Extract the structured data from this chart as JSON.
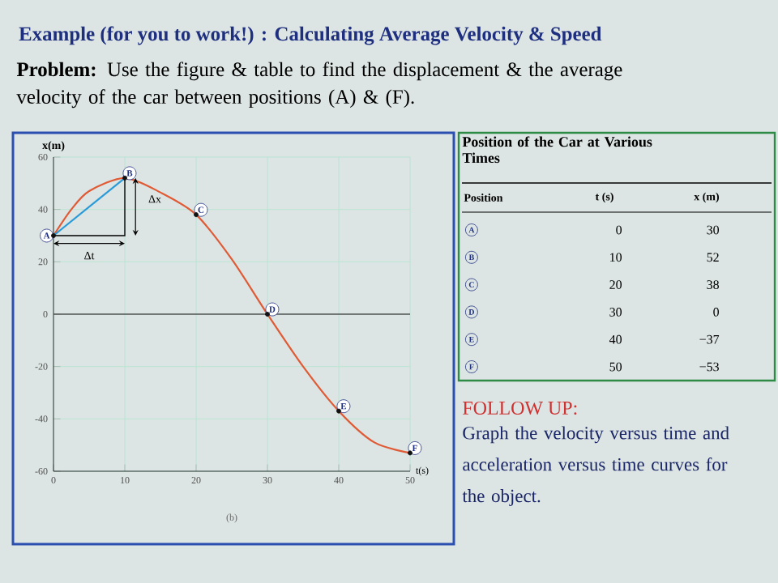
{
  "chart_data": [
    {
      "type": "line",
      "title": "Example (for you to work!) : Calculating Average Velocity & Speed",
      "subtitle": "**Problem:** Use the figure & table to find the displacement & the average velocity of the car between positions (A) & (F).",
      "xlabel": "t(s)",
      "ylabel": "x(m)",
      "xlim": [
        0,
        50
      ],
      "ylim": [
        -60,
        60
      ],
      "xticks": [
        0,
        10,
        20,
        30,
        40,
        50
      ],
      "yticks": [
        -60,
        -40,
        -20,
        0,
        20,
        40,
        60
      ],
      "grid": true,
      "ref_lines": [
        {
          "axis": "y",
          "value": 0,
          "color": "#555555"
        }
      ],
      "series": [
        {
          "type": "line",
          "color": "#e05a35",
          "x": [
            0,
            2.5,
            5,
            10,
            15,
            20,
            25,
            30,
            35,
            40,
            45,
            50
          ],
          "values": [
            30,
            40,
            47,
            52,
            46.5,
            38,
            21,
            0,
            -20,
            -37,
            -49,
            -53
          ]
        },
        {
          "type": "line",
          "color": "#2a9ad8",
          "x": [
            0,
            10
          ],
          "values": [
            30,
            52
          ]
        },
        {
          "type": "scatter",
          "color": "#111111",
          "marker": "circle",
          "x": [
            0,
            10,
            20,
            30,
            40,
            50
          ],
          "values": [
            30,
            52,
            38,
            0,
            -37,
            -53
          ]
        }
      ],
      "annotations": [
        {
          "text": "A",
          "x": 0,
          "y": 30
        },
        {
          "text": "B",
          "x": 10,
          "y": 52
        },
        {
          "text": "C",
          "x": 20,
          "y": 38
        },
        {
          "text": "D",
          "x": 30,
          "y": 0
        },
        {
          "text": "E",
          "x": 40,
          "y": -37
        },
        {
          "text": "F",
          "x": 50,
          "y": -53
        },
        "Δx",
        "Δt",
        "(b)",
        "Position of the Car at Various Times",
        "Position",
        "t (s)",
        "x (m)",
        "A",
        "0",
        "30",
        "B",
        "10",
        "52",
        "C",
        "20",
        "38",
        "D",
        "30",
        "0",
        "E",
        "40",
        "−37",
        "F",
        "50",
        "−53"
      ]
    },
    {
      "type": "other",
      "title": "FOLLOW UP:",
      "annotations": [
        "Graph the velocity versus time and acceleration versus time curves for the object."
      ]
    }
  ]
}
